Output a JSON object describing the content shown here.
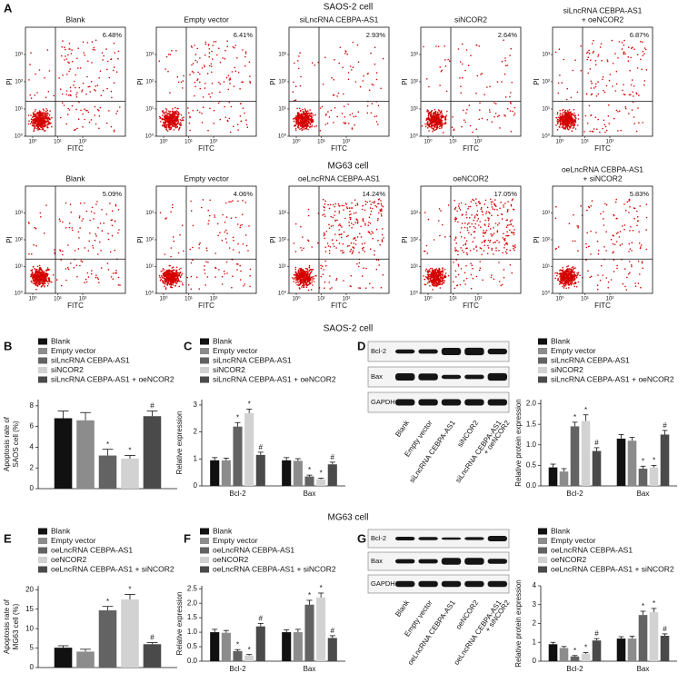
{
  "sections": [
    "SAOS-2 cell",
    "MG63 cell",
    "SAOS-2 cell",
    "MG63 cell"
  ],
  "panel_labels": [
    "A",
    "B",
    "C",
    "D",
    "E",
    "F",
    "G"
  ],
  "chart_data": [
    {
      "type": "scatter",
      "title_lines": [
        "Blank"
      ],
      "annotation": "6.48%",
      "xlabel": "FITC",
      "ylabel": "PI",
      "xlim": [
        0,
        4
      ],
      "ylim": [
        0,
        4
      ],
      "xticks": [
        {
          "value": 0,
          "label": "10⁰"
        },
        {
          "value": 1,
          "label": "10¹"
        },
        {
          "value": 2,
          "label": "10²"
        }
      ],
      "yticks": [
        {
          "value": 0,
          "label": "10⁰"
        },
        {
          "value": 1,
          "label": "10¹"
        },
        {
          "value": 2,
          "label": "10²"
        },
        {
          "value": 3,
          "label": "10³"
        }
      ]
    },
    {
      "type": "scatter",
      "title_lines": [
        "Empty vector"
      ],
      "annotation": "6.41%",
      "xlabel": "FITC",
      "ylabel": "PI",
      "xlim": [
        0,
        4
      ],
      "ylim": [
        0,
        4
      ],
      "xticks": [
        {
          "value": 0,
          "label": "10⁰"
        },
        {
          "value": 1,
          "label": "10¹"
        },
        {
          "value": 2,
          "label": "10²"
        }
      ],
      "yticks": [
        {
          "value": 0,
          "label": "10⁰"
        },
        {
          "value": 1,
          "label": "10¹"
        },
        {
          "value": 2,
          "label": "10²"
        },
        {
          "value": 3,
          "label": "10³"
        }
      ]
    },
    {
      "type": "scatter",
      "title_lines": [
        "siLncRNA CEBPA-AS1"
      ],
      "annotation": "2.93%",
      "xlabel": "FITC",
      "ylabel": "PI",
      "xlim": [
        0,
        4
      ],
      "ylim": [
        0,
        4
      ],
      "xticks": [
        {
          "value": 0,
          "label": "10⁰"
        },
        {
          "value": 1,
          "label": "10¹"
        },
        {
          "value": 2,
          "label": "10²"
        }
      ],
      "yticks": [
        {
          "value": 0,
          "label": "10⁰"
        },
        {
          "value": 1,
          "label": "10¹"
        },
        {
          "value": 2,
          "label": "10²"
        },
        {
          "value": 3,
          "label": "10³"
        }
      ]
    },
    {
      "type": "scatter",
      "title_lines": [
        "siNCOR2"
      ],
      "annotation": "2.64%",
      "xlabel": "FITC",
      "ylabel": "PI",
      "xlim": [
        0,
        4
      ],
      "ylim": [
        0,
        4
      ],
      "xticks": [
        {
          "value": 0,
          "label": "10⁰"
        },
        {
          "value": 1,
          "label": "10¹"
        },
        {
          "value": 2,
          "label": "10²"
        }
      ],
      "yticks": [
        {
          "value": 0,
          "label": "10⁰"
        },
        {
          "value": 1,
          "label": "10¹"
        },
        {
          "value": 2,
          "label": "10²"
        },
        {
          "value": 3,
          "label": "10³"
        }
      ]
    },
    {
      "type": "scatter",
      "title_lines": [
        "siLncRNA CEBPA-AS1",
        "+ oeNCOR2"
      ],
      "annotation": "6.87%",
      "xlabel": "FITC",
      "ylabel": "PI",
      "xlim": [
        0,
        4
      ],
      "ylim": [
        0,
        4
      ],
      "xticks": [
        {
          "value": 0,
          "label": "10⁰"
        },
        {
          "value": 1,
          "label": "10¹"
        },
        {
          "value": 2,
          "label": "10²"
        }
      ],
      "yticks": [
        {
          "value": 0,
          "label": "10⁰"
        },
        {
          "value": 1,
          "label": "10¹"
        },
        {
          "value": 2,
          "label": "10²"
        },
        {
          "value": 3,
          "label": "10³"
        }
      ]
    },
    {
      "type": "scatter",
      "title_lines": [
        "Blank"
      ],
      "annotation": "5.09%",
      "xlabel": "FITC",
      "ylabel": "PI",
      "xlim": [
        0,
        4
      ],
      "ylim": [
        0,
        4
      ],
      "xticks": [
        {
          "value": 0,
          "label": "10⁰"
        },
        {
          "value": 1,
          "label": "10¹"
        },
        {
          "value": 2,
          "label": "10²"
        }
      ],
      "yticks": [
        {
          "value": 0,
          "label": "10⁰"
        },
        {
          "value": 1,
          "label": "10¹"
        },
        {
          "value": 2,
          "label": "10²"
        },
        {
          "value": 3,
          "label": "10³"
        }
      ]
    },
    {
      "type": "scatter",
      "title_lines": [
        "Empty vector"
      ],
      "annotation": "4.06%",
      "xlabel": "FITC",
      "ylabel": "PI",
      "xlim": [
        0,
        4
      ],
      "ylim": [
        0,
        4
      ],
      "xticks": [
        {
          "value": 0,
          "label": "10⁰"
        },
        {
          "value": 1,
          "label": "10¹"
        },
        {
          "value": 2,
          "label": "10²"
        }
      ],
      "yticks": [
        {
          "value": 0,
          "label": "10⁰"
        },
        {
          "value": 1,
          "label": "10¹"
        },
        {
          "value": 2,
          "label": "10²"
        },
        {
          "value": 3,
          "label": "10³"
        }
      ]
    },
    {
      "type": "scatter",
      "title_lines": [
        "oeLncRNA CEBPA-AS1"
      ],
      "annotation": "14.24%",
      "xlabel": "FITC",
      "ylabel": "PI",
      "xlim": [
        0,
        4
      ],
      "ylim": [
        0,
        4
      ],
      "xticks": [
        {
          "value": 0,
          "label": "10⁰"
        },
        {
          "value": 1,
          "label": "10¹"
        },
        {
          "value": 2,
          "label": "10²"
        }
      ],
      "yticks": [
        {
          "value": 0,
          "label": "10⁰"
        },
        {
          "value": 1,
          "label": "10¹"
        },
        {
          "value": 2,
          "label": "10²"
        },
        {
          "value": 3,
          "label": "10³"
        }
      ]
    },
    {
      "type": "scatter",
      "title_lines": [
        "oeNCOR2"
      ],
      "annotation": "17.05%",
      "xlabel": "FITC",
      "ylabel": "PI",
      "xlim": [
        0,
        4
      ],
      "ylim": [
        0,
        4
      ],
      "xticks": [
        {
          "value": 0,
          "label": "10⁰"
        },
        {
          "value": 1,
          "label": "10¹"
        },
        {
          "value": 2,
          "label": "10²"
        }
      ],
      "yticks": [
        {
          "value": 0,
          "label": "10⁰"
        },
        {
          "value": 1,
          "label": "10¹"
        },
        {
          "value": 2,
          "label": "10²"
        },
        {
          "value": 3,
          "label": "10³"
        }
      ]
    },
    {
      "type": "scatter",
      "title_lines": [
        "oeLncRNA CEBPA-AS1",
        "+ siNCOR2"
      ],
      "annotation": "5.83%",
      "xlabel": "FITC",
      "ylabel": "PI",
      "xlim": [
        0,
        4
      ],
      "ylim": [
        0,
        4
      ],
      "xticks": [
        {
          "value": 0,
          "label": "10⁰"
        },
        {
          "value": 1,
          "label": "10¹"
        },
        {
          "value": 2,
          "label": "10²"
        }
      ],
      "yticks": [
        {
          "value": 0,
          "label": "10⁰"
        },
        {
          "value": 1,
          "label": "10¹"
        },
        {
          "value": 2,
          "label": "10²"
        },
        {
          "value": 3,
          "label": "10³"
        }
      ]
    },
    {
      "type": "bar",
      "ylabel_lines": [
        "Apoptosis rate of",
        "SAOS cell (%)"
      ],
      "categories": [
        null
      ],
      "ylim": [
        0,
        8.6
      ],
      "yticks": [
        0,
        2,
        4,
        6,
        8
      ],
      "series": [
        {
          "name": "Blank",
          "color": "#111111",
          "values": [
            6.8
          ],
          "errors": [
            0.7
          ],
          "markers": [
            null
          ]
        },
        {
          "name": "Empty vector",
          "color": "#8c8c8c",
          "values": [
            6.6
          ],
          "errors": [
            0.75
          ],
          "markers": [
            null
          ]
        },
        {
          "name": "siLncRNA CEBPA-AS1",
          "color": "#636363",
          "values": [
            3.2
          ],
          "errors": [
            0.6
          ],
          "markers": [
            "*"
          ]
        },
        {
          "name": "siNCOR2",
          "color": "#d2d2d2",
          "values": [
            2.9
          ],
          "errors": [
            0.3
          ],
          "markers": [
            "*"
          ]
        },
        {
          "name": "siLncRNA CEBPA-AS1 + oeNCOR2",
          "color": "#4a4a4a",
          "values": [
            7.0
          ],
          "errors": [
            0.5
          ],
          "markers": [
            "#"
          ]
        }
      ]
    },
    {
      "type": "bar",
      "ylabel_lines": [
        "Relative expression"
      ],
      "categories": [
        "Bcl-2",
        "Bax"
      ],
      "ylim": [
        0,
        3.2
      ],
      "yticks": [
        0,
        1,
        2,
        3
      ],
      "series": [
        {
          "name": "Blank",
          "color": "#111111",
          "values": [
            0.95,
            0.95
          ],
          "errors": [
            0.1,
            0.1
          ],
          "markers": [
            null,
            null
          ]
        },
        {
          "name": "Empty vector",
          "color": "#8c8c8c",
          "values": [
            0.95,
            0.93
          ],
          "errors": [
            0.08,
            0.08
          ],
          "markers": [
            null,
            null
          ]
        },
        {
          "name": "siLncRNA CEBPA-AS1",
          "color": "#636363",
          "values": [
            2.2,
            0.35
          ],
          "errors": [
            0.15,
            0.05
          ],
          "markers": [
            "*",
            "*"
          ]
        },
        {
          "name": "siNCOR2",
          "color": "#d2d2d2",
          "values": [
            2.7,
            0.25
          ],
          "errors": [
            0.15,
            0.04
          ],
          "markers": [
            "*",
            "*"
          ]
        },
        {
          "name": "siLncRNA CEBPA-AS1 + oeNCOR2",
          "color": "#4a4a4a",
          "values": [
            1.15,
            0.8
          ],
          "errors": [
            0.1,
            0.08
          ],
          "markers": [
            "#",
            "#"
          ]
        }
      ]
    },
    {
      "type": "bar",
      "ylabel_lines": [
        "Relative protein expression"
      ],
      "categories": [
        "Bcl-2",
        "Bax"
      ],
      "ylim": [
        0,
        2.1
      ],
      "yticks": [
        {
          "value": 0,
          "label": "0.0"
        },
        {
          "value": 0.5,
          "label": "0.5"
        },
        {
          "value": 1,
          "label": "1.0"
        },
        {
          "value": 1.5,
          "label": "1.5"
        },
        {
          "value": 2,
          "label": "2.0"
        }
      ],
      "series": [
        {
          "name": "Blank",
          "color": "#111111",
          "values": [
            0.45,
            1.15
          ],
          "errors": [
            0.08,
            0.1
          ],
          "markers": [
            null,
            null
          ]
        },
        {
          "name": "Empty vector",
          "color": "#8c8c8c",
          "values": [
            0.35,
            1.1
          ],
          "errors": [
            0.07,
            0.08
          ],
          "markers": [
            null,
            null
          ]
        },
        {
          "name": "siLncRNA CEBPA-AS1",
          "color": "#636363",
          "values": [
            1.45,
            0.42
          ],
          "errors": [
            0.1,
            0.06
          ],
          "markers": [
            "*",
            "*"
          ]
        },
        {
          "name": "siNCOR2",
          "color": "#d2d2d2",
          "values": [
            1.58,
            0.45
          ],
          "errors": [
            0.15,
            0.05
          ],
          "markers": [
            "*",
            "*"
          ]
        },
        {
          "name": "siLncRNA CEBPA-AS1 + oeNCOR2",
          "color": "#4a4a4a",
          "values": [
            0.85,
            1.25
          ],
          "errors": [
            0.08,
            0.1
          ],
          "markers": [
            "#",
            "#"
          ]
        }
      ]
    },
    {
      "type": "bar",
      "ylabel_lines": [
        "Apoptosis rate of",
        "MG63 cell (%)"
      ],
      "categories": [
        null
      ],
      "ylim": [
        0,
        21
      ],
      "yticks": [
        0,
        5,
        10,
        15,
        20
      ],
      "series": [
        {
          "name": "Blank",
          "color": "#111111",
          "values": [
            5.1
          ],
          "errors": [
            0.5
          ],
          "markers": [
            null
          ]
        },
        {
          "name": "Empty vector",
          "color": "#8c8c8c",
          "values": [
            4.1
          ],
          "errors": [
            0.6
          ],
          "markers": [
            null
          ]
        },
        {
          "name": "oeLncRNA CEBPA-AS1",
          "color": "#636363",
          "values": [
            14.7
          ],
          "errors": [
            1.0
          ],
          "markers": [
            "*"
          ]
        },
        {
          "name": "oeNCOR2",
          "color": "#d2d2d2",
          "values": [
            17.5
          ],
          "errors": [
            1.3
          ],
          "markers": [
            "*"
          ]
        },
        {
          "name": "oeLncRNA CEBPA-AS1 + siNCOR2",
          "color": "#4a4a4a",
          "values": [
            6.0
          ],
          "errors": [
            0.4
          ],
          "markers": [
            "#"
          ]
        }
      ]
    },
    {
      "type": "bar",
      "ylabel_lines": [
        "Relative expression"
      ],
      "categories": [
        "Bcl-2",
        "Bax"
      ],
      "ylim": [
        0,
        2.6
      ],
      "yticks": [
        {
          "value": 0,
          "label": "0.0"
        },
        {
          "value": 0.5,
          "label": "0.5"
        },
        {
          "value": 1,
          "label": "1.0"
        },
        {
          "value": 1.5,
          "label": "1.5"
        },
        {
          "value": 2,
          "label": "2.0"
        },
        {
          "value": 2.5,
          "label": "2.5"
        }
      ],
      "series": [
        {
          "name": "Blank",
          "color": "#111111",
          "values": [
            1.0,
            1.0
          ],
          "errors": [
            0.1,
            0.08
          ],
          "markers": [
            null,
            null
          ]
        },
        {
          "name": "Empty vector",
          "color": "#8c8c8c",
          "values": [
            0.98,
            1.0
          ],
          "errors": [
            0.08,
            0.1
          ],
          "markers": [
            null,
            null
          ]
        },
        {
          "name": "oeLncRNA CEBPA-AS1",
          "color": "#636363",
          "values": [
            0.35,
            1.95
          ],
          "errors": [
            0.05,
            0.15
          ],
          "markers": [
            "*",
            "*"
          ]
        },
        {
          "name": "oeNCOR2",
          "color": "#d2d2d2",
          "values": [
            0.2,
            2.2
          ],
          "errors": [
            0.03,
            0.15
          ],
          "markers": [
            "*",
            "*"
          ]
        },
        {
          "name": "oeLncRNA CEBPA-AS1 + siNCOR2",
          "color": "#4a4a4a",
          "values": [
            1.2,
            0.8
          ],
          "errors": [
            0.1,
            0.08
          ],
          "markers": [
            "#",
            "#"
          ]
        }
      ]
    },
    {
      "type": "bar",
      "ylabel_lines": [
        "Relative protein expression"
      ],
      "categories": [
        "Bcl-2",
        "Bax"
      ],
      "ylim": [
        0,
        4
      ],
      "yticks": [
        0,
        1,
        2,
        3,
        4
      ],
      "series": [
        {
          "name": "Blank",
          "color": "#111111",
          "values": [
            0.9,
            1.2
          ],
          "errors": [
            0.1,
            0.1
          ],
          "markers": [
            null,
            null
          ]
        },
        {
          "name": "Empty vector",
          "color": "#8c8c8c",
          "values": [
            0.7,
            1.2
          ],
          "errors": [
            0.08,
            0.12
          ],
          "markers": [
            null,
            null
          ]
        },
        {
          "name": "oeLncRNA CEBPA-AS1",
          "color": "#636363",
          "values": [
            0.25,
            2.45
          ],
          "errors": [
            0.05,
            0.2
          ],
          "markers": [
            "*",
            "*"
          ]
        },
        {
          "name": "oeNCOR2",
          "color": "#d2d2d2",
          "values": [
            0.4,
            2.6
          ],
          "errors": [
            0.06,
            0.2
          ],
          "markers": [
            "*",
            "*"
          ]
        },
        {
          "name": "oeLncRNA CEBPA-AS1 + siNCOR2",
          "color": "#4a4a4a",
          "values": [
            1.1,
            1.35
          ],
          "errors": [
            0.1,
            0.1
          ],
          "markers": [
            "#",
            "#"
          ]
        }
      ]
    }
  ],
  "blots": [
    {
      "proteins": [
        "Bcl-2",
        "Bax",
        "GAPDH"
      ],
      "lanes": [
        [
          "Blank"
        ],
        [
          "Empty vector"
        ],
        [
          "siLncRNA CEBPA-AS1"
        ],
        [
          "siNCOR2"
        ],
        [
          "siLncRNA CEBPA-AS1",
          "+ oeNCOR2"
        ]
      ]
    },
    {
      "proteins": [
        "Bcl-2",
        "Bax",
        "GAPDH"
      ],
      "lanes": [
        [
          "Blank"
        ],
        [
          "Empty vector"
        ],
        [
          "oeLncRNA CEBPA-AS1"
        ],
        [
          "oeNCOR2"
        ],
        [
          "oeLncRNA CEBPA-AS1",
          "+ siNCOR2"
        ]
      ]
    }
  ]
}
